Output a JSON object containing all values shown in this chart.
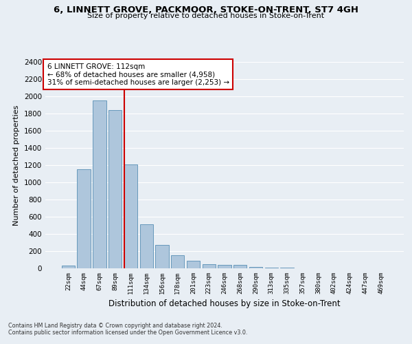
{
  "title": "6, LINNETT GROVE, PACKMOOR, STOKE-ON-TRENT, ST7 4GH",
  "subtitle": "Size of property relative to detached houses in Stoke-on-Trent",
  "xlabel": "Distribution of detached houses by size in Stoke-on-Trent",
  "ylabel": "Number of detached properties",
  "bin_labels": [
    "22sqm",
    "44sqm",
    "67sqm",
    "89sqm",
    "111sqm",
    "134sqm",
    "156sqm",
    "178sqm",
    "201sqm",
    "223sqm",
    "246sqm",
    "268sqm",
    "290sqm",
    "313sqm",
    "335sqm",
    "357sqm",
    "380sqm",
    "402sqm",
    "424sqm",
    "447sqm",
    "469sqm"
  ],
  "bar_heights": [
    30,
    1150,
    1950,
    1840,
    1210,
    510,
    270,
    155,
    85,
    48,
    42,
    40,
    20,
    10,
    5,
    3,
    3,
    2,
    2,
    1,
    1
  ],
  "bar_color": "#aec6dc",
  "bar_edge_color": "#6699bb",
  "vline_color": "#cc0000",
  "annotation_text": "6 LINNETT GROVE: 112sqm\n← 68% of detached houses are smaller (4,958)\n31% of semi-detached houses are larger (2,253) →",
  "annotation_box_color": "#ffffff",
  "annotation_box_edge": "#cc0000",
  "ylim": [
    0,
    2400
  ],
  "yticks": [
    0,
    200,
    400,
    600,
    800,
    1000,
    1200,
    1400,
    1600,
    1800,
    2000,
    2200,
    2400
  ],
  "footer1": "Contains HM Land Registry data © Crown copyright and database right 2024.",
  "footer2": "Contains public sector information licensed under the Open Government Licence v3.0.",
  "bg_color": "#e8eef4",
  "grid_color": "#ffffff"
}
